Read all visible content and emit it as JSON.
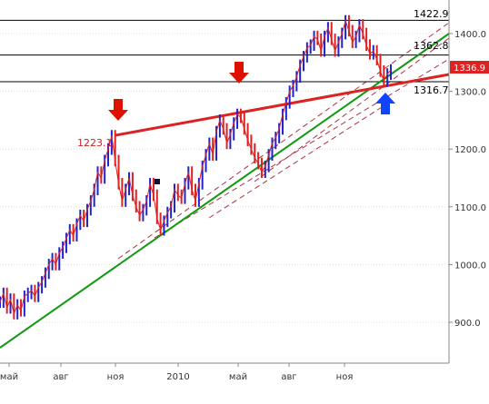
{
  "chart_data": {
    "type": "line",
    "y_axis": {
      "ticks": [
        "1400.0",
        "1300.0",
        "1200.0",
        "1100.0",
        "1000.0",
        "900.0"
      ],
      "tick_values": [
        1400,
        1300,
        1200,
        1100,
        1000,
        900
      ],
      "ylim": [
        855,
        1460
      ]
    },
    "x_axis": {
      "tick_labels": [
        "май",
        "авг",
        "ноя",
        "2010",
        "май",
        "авг",
        "ноя"
      ]
    },
    "grid": "horizontal dotted",
    "levels": [
      {
        "label": "1422.9",
        "value": 1422.9
      },
      {
        "label": "1362.8",
        "value": 1362.8
      },
      {
        "label": "1316.7",
        "value": 1316.7
      }
    ],
    "annotation": {
      "label": "1223.1",
      "value": 1223.1
    },
    "current_price": {
      "label": "1336.9",
      "value": 1336.9
    },
    "series": [
      {
        "values": [
          935,
          950,
          925,
          940,
          915,
          930,
          920,
          945,
          950,
          955,
          945,
          960,
          970,
          985,
          1000,
          1010,
          1000,
          1020,
          1030,
          1045,
          1060,
          1050,
          1070,
          1085,
          1075,
          1095,
          1110,
          1130,
          1160,
          1150,
          1180,
          1200,
          1223,
          1180,
          1140,
          1110,
          1130,
          1150,
          1120,
          1100,
          1085,
          1095,
          1110,
          1140,
          1120,
          1080,
          1060,
          1075,
          1090,
          1100,
          1130,
          1120,
          1115,
          1140,
          1160,
          1130,
          1110,
          1140,
          1170,
          1190,
          1210,
          1190,
          1230,
          1250,
          1235,
          1210,
          1225,
          1245,
          1260,
          1255,
          1235,
          1215,
          1200,
          1185,
          1175,
          1160,
          1170,
          1190,
          1210,
          1220,
          1235,
          1260,
          1280,
          1300,
          1310,
          1325,
          1345,
          1360,
          1375,
          1380,
          1395,
          1390,
          1370,
          1395,
          1410,
          1390,
          1370,
          1385,
          1400,
          1422,
          1405,
          1385,
          1395,
          1415,
          1400,
          1380,
          1365,
          1370,
          1355,
          1335,
          1318,
          1330,
          1337
        ]
      }
    ],
    "lines": [
      {
        "name": "resistance",
        "color": "#dd2222"
      },
      {
        "name": "support",
        "color": "#119911"
      }
    ],
    "arrows": [
      {
        "direction": "down",
        "color": "#dd1100"
      },
      {
        "direction": "down",
        "color": "#dd1100"
      },
      {
        "direction": "up",
        "color": "#1144ff"
      }
    ]
  }
}
